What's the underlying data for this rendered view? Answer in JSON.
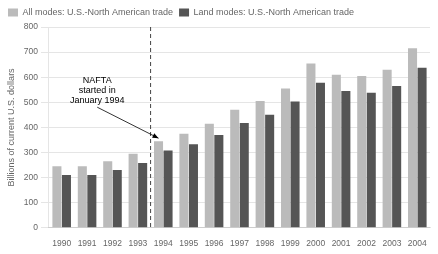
{
  "chart_data": {
    "type": "bar",
    "categories": [
      "1990",
      "1991",
      "1992",
      "1993",
      "1994",
      "1995",
      "1996",
      "1997",
      "1998",
      "1999",
      "2000",
      "2001",
      "2002",
      "2003",
      "2004"
    ],
    "series": [
      {
        "name": "All modes: U.S.-North American trade",
        "color": "#bbbbbb",
        "values": [
          245,
          245,
          265,
          295,
          345,
          375,
          415,
          470,
          505,
          555,
          655,
          610,
          605,
          630,
          715
        ]
      },
      {
        "name": "Land modes: U.S.-North American trade",
        "color": "#555555",
        "values": [
          210,
          210,
          230,
          258,
          308,
          333,
          370,
          418,
          450,
          503,
          578,
          545,
          538,
          565,
          638
        ]
      }
    ],
    "ylabel": "Billions of current U.S. dollars",
    "ylim": [
      0,
      800
    ],
    "yticks": [
      0,
      100,
      200,
      300,
      400,
      500,
      600,
      700,
      800
    ],
    "grid": true,
    "legend": "upper left",
    "annotations": [
      {
        "text": "NAFTA\nstarted in\nJanuary 1994",
        "x": "1994"
      }
    ]
  }
}
